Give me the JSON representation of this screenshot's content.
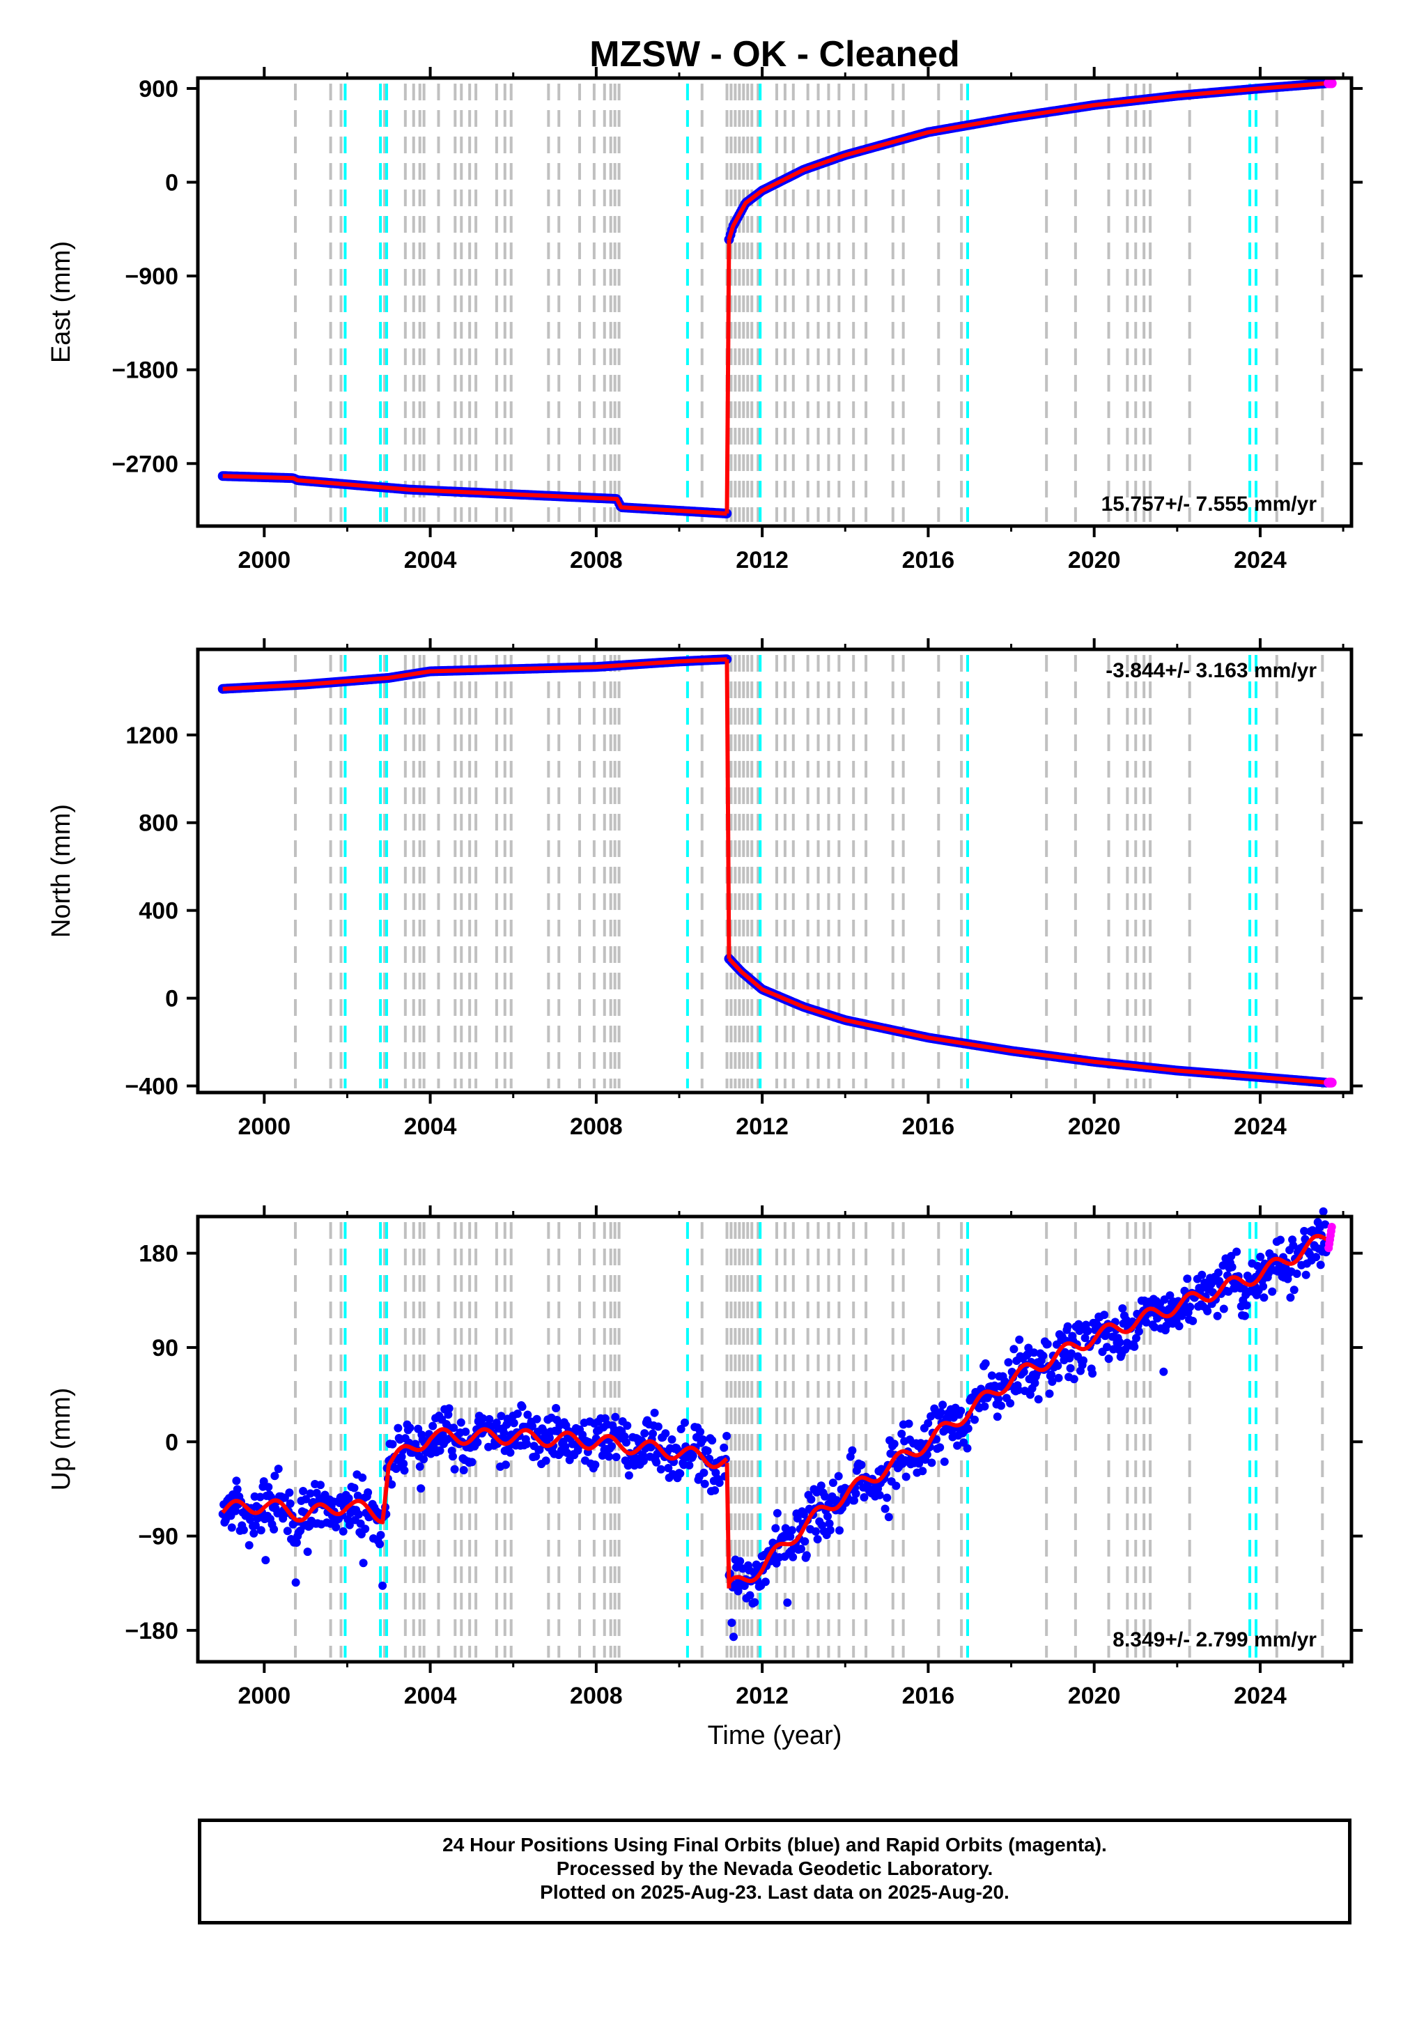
{
  "title": "MZSW  - OK - Cleaned",
  "footer": {
    "line1": "24 Hour Positions Using Final Orbits (blue) and Rapid Orbits (magenta).",
    "line2": "Processed by the Nevada Geodetic Laboratory.",
    "line3": "Plotted on 2025-Aug-23. Last data on 2025-Aug-20."
  },
  "colors": {
    "final_orbits": "#0000ff",
    "rapid_orbits": "#ff00ff",
    "model": "#ff0000",
    "gray_events": "#c0c0c0",
    "cyan_events": "#00ffff"
  },
  "chart_data": [
    {
      "type": "scatter",
      "ylabel": "East (mm)",
      "xlim": [
        1998.4,
        2026.2
      ],
      "ylim": [
        -3300,
        1000
      ],
      "xticks": [
        2000,
        2004,
        2008,
        2012,
        2016,
        2020,
        2024
      ],
      "yticks": [
        900,
        0,
        -900,
        -1800,
        -2700
      ],
      "rate_label": "15.757+/- 7.555 mm/yr",
      "rate_position": "bottom-right",
      "series": [
        {
          "name": "final",
          "x": [
            1999.0,
            2000.7,
            2000.8,
            2003.5,
            2008.5,
            2008.6,
            2011.15
          ],
          "y": [
            -2820,
            -2840,
            -2860,
            -2950,
            -3040,
            -3120,
            -3180
          ]
        },
        {
          "name": "final-post",
          "x": [
            2011.2,
            2011.3,
            2011.6,
            2012.0,
            2013.0,
            2014.0,
            2016.0,
            2018.0,
            2020.0,
            2022.0,
            2024.0,
            2025.6
          ],
          "y": [
            -550,
            -420,
            -200,
            -80,
            120,
            260,
            480,
            620,
            740,
            830,
            900,
            950
          ]
        }
      ]
    },
    {
      "type": "scatter",
      "ylabel": "North (mm)",
      "xlim": [
        1998.4,
        2026.2
      ],
      "ylim": [
        -430,
        1590
      ],
      "xticks": [
        2000,
        2004,
        2008,
        2012,
        2016,
        2020,
        2024
      ],
      "yticks": [
        1200,
        800,
        400,
        0,
        -400
      ],
      "rate_label": "-3.844+/- 3.163 mm/yr",
      "rate_position": "top-right",
      "series": [
        {
          "name": "final",
          "x": [
            1999.0,
            2001.0,
            2003.0,
            2004.0,
            2006.0,
            2008.0,
            2010.0,
            2011.15
          ],
          "y": [
            1410,
            1430,
            1460,
            1490,
            1500,
            1510,
            1535,
            1545
          ]
        },
        {
          "name": "final-post",
          "x": [
            2011.2,
            2011.5,
            2012.0,
            2013.0,
            2014.0,
            2016.0,
            2018.0,
            2020.0,
            2022.0,
            2024.0,
            2025.6
          ],
          "y": [
            180,
            120,
            40,
            -40,
            -100,
            -180,
            -240,
            -290,
            -330,
            -360,
            -385
          ]
        }
      ]
    },
    {
      "type": "scatter",
      "ylabel": "Up (mm)",
      "xlim": [
        1998.4,
        2026.2
      ],
      "ylim": [
        -210,
        215
      ],
      "xticks": [
        2000,
        2004,
        2008,
        2012,
        2016,
        2020,
        2024
      ],
      "yticks": [
        180,
        90,
        0,
        -90,
        -180
      ],
      "xlabel": "Time (year)",
      "rate_label": "8.349+/- 2.799 mm/yr",
      "rate_position": "bottom-right",
      "series": [
        {
          "name": "final",
          "x": [
            1999.0,
            2000.0,
            2001.0,
            2002.0,
            2002.85,
            2003.0,
            2004.0,
            2006.0,
            2008.0,
            2010.0,
            2011.15
          ],
          "y": [
            -65,
            -60,
            -70,
            -60,
            -70,
            -20,
            5,
            5,
            0,
            -10,
            -20
          ]
        },
        {
          "name": "final-post",
          "x": [
            2011.2,
            2012.0,
            2013.0,
            2014.0,
            2016.0,
            2018.0,
            2020.0,
            2022.0,
            2024.0,
            2025.6
          ],
          "y": [
            -140,
            -120,
            -80,
            -50,
            0,
            60,
            100,
            130,
            160,
            195
          ]
        }
      ]
    }
  ],
  "events": {
    "gray": [
      2000.75,
      2001.6,
      2001.85,
      2002.9,
      2003.4,
      2003.6,
      2003.75,
      2003.85,
      2004.2,
      2004.6,
      2004.75,
      2004.95,
      2005.1,
      2005.6,
      2005.8,
      2005.95,
      2006.85,
      2007.1,
      2007.6,
      2007.95,
      2008.2,
      2008.35,
      2008.45,
      2008.55,
      2010.55,
      2011.15,
      2011.25,
      2011.35,
      2011.45,
      2011.55,
      2011.65,
      2011.75,
      2011.9,
      2012.35,
      2012.55,
      2012.75,
      2013.1,
      2013.35,
      2013.6,
      2013.85,
      2014.2,
      2014.5,
      2015.15,
      2015.4,
      2016.25,
      2016.8,
      2018.85,
      2019.55,
      2020.35,
      2020.8,
      2021.0,
      2021.2,
      2021.35,
      2022.3,
      2024.4,
      2025.5
    ],
    "cyan": [
      2001.95,
      2002.8,
      2002.95,
      2010.2,
      2011.95,
      2016.95,
      2023.75,
      2023.9
    ]
  }
}
